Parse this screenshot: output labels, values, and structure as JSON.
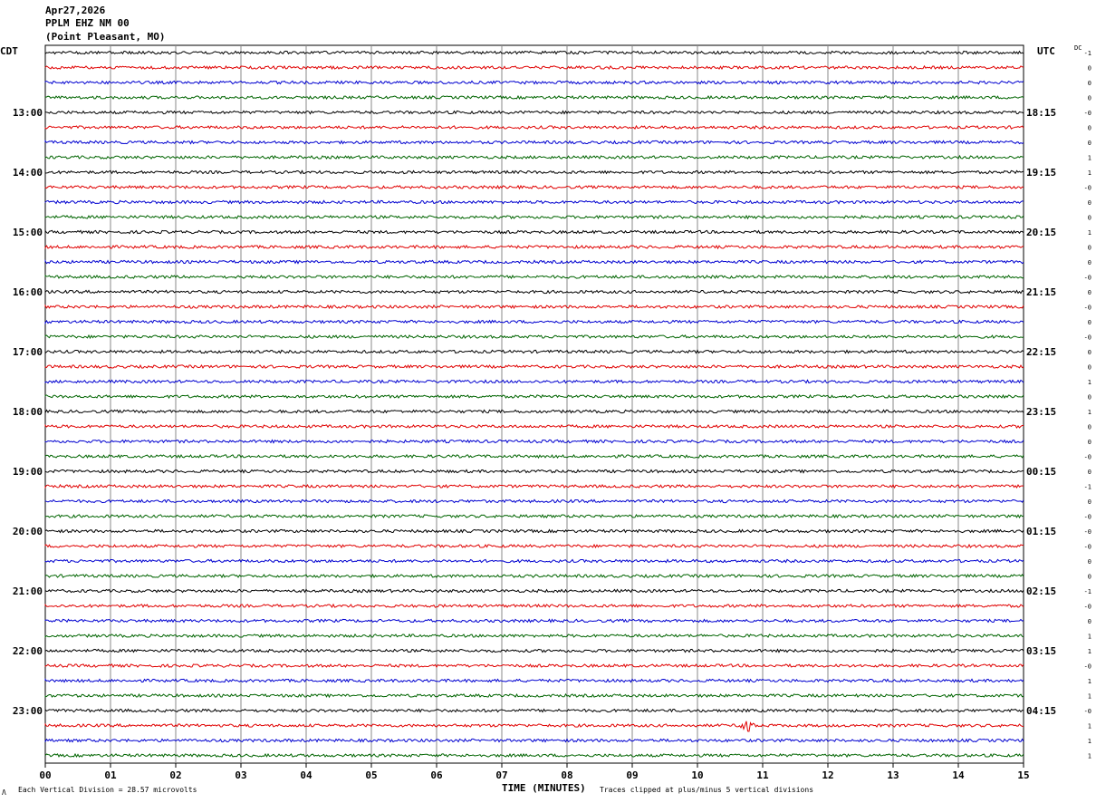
{
  "header": {
    "date": "Apr27,2026",
    "station": "PPLM EHZ NM 00",
    "location": "(Point Pleasant, MO)"
  },
  "timezones": {
    "left": "CDT",
    "right": "UTC",
    "dc_label": "DC"
  },
  "footer": {
    "scale_note": "Each Vertical Division =   28.57 microvolts",
    "clip_note": "Traces clipped at plus/minus 5 vertical divisions",
    "corner_mark": "Λ"
  },
  "chart_data": {
    "type": "line",
    "title": "",
    "xlabel": "TIME (MINUTES)",
    "ylabel": "",
    "xlim": [
      0,
      15
    ],
    "x_ticks": [
      "00",
      "01",
      "02",
      "03",
      "04",
      "05",
      "06",
      "07",
      "08",
      "09",
      "10",
      "11",
      "12",
      "13",
      "14",
      "15"
    ],
    "left_hour_labels": [
      "13:00",
      "14:00",
      "15:00",
      "16:00",
      "17:00",
      "18:00",
      "19:00",
      "20:00",
      "21:00",
      "22:00",
      "23:00"
    ],
    "right_hour_labels": [
      "18:15",
      "19:15",
      "20:15",
      "21:15",
      "22:15",
      "23:15",
      "00:15",
      "01:15",
      "02:15",
      "03:15",
      "04:15"
    ],
    "trace_colors": [
      "#000000",
      "#e00000",
      "#0000d0",
      "#006400"
    ],
    "trace_count": 48,
    "minutes_per_trace": 15,
    "dc_offsets": [
      "-1",
      "0",
      "0",
      "0",
      "-0",
      "0",
      "0",
      "1",
      "1",
      "-0",
      "0",
      "0",
      "1",
      "0",
      "0",
      "-0",
      "0",
      "-0",
      "0",
      "-0",
      "0",
      "0",
      "1",
      "0",
      "1",
      "0",
      "0",
      "-0",
      "0",
      "-1",
      "0",
      "-0",
      "-0",
      "-0",
      "0",
      "0",
      "-1",
      "-0",
      "0",
      "1",
      "1",
      "-0",
      "1",
      "1",
      "-0",
      "1",
      "1",
      "1"
    ],
    "notable_events": [
      {
        "trace_index": 45,
        "minute": 10.75,
        "amplitude_divisions": 4
      }
    ]
  }
}
